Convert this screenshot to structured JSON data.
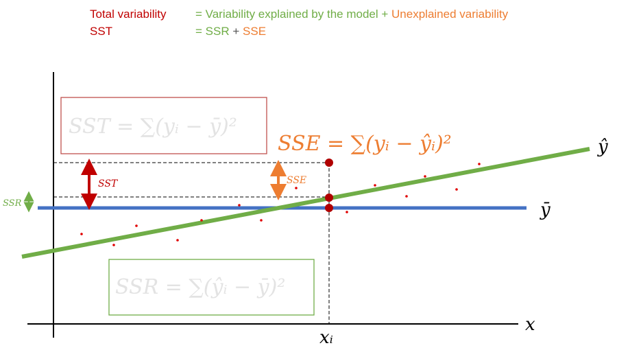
{
  "header": {
    "line1": {
      "total": "Total variability",
      "explained": "= Variability explained by the model +",
      "unexplained": "Unexplained variability"
    },
    "line2": {
      "sst": "SST",
      "ssr": "= SSR",
      "plus": "+",
      "sse": "SSE"
    }
  },
  "formulas": {
    "sst": "SST = ∑(yᵢ − ȳ)²",
    "sse": "SSE = ∑(yᵢ − ŷᵢ)²",
    "ssr": "SSR = ∑(ŷᵢ − ȳ)²"
  },
  "labels": {
    "sst": "SST",
    "sse": "SSE",
    "ssr": "SSR",
    "x": "x",
    "xi": "xᵢ",
    "yhat": "ŷ",
    "ybar": "ȳ"
  }
}
